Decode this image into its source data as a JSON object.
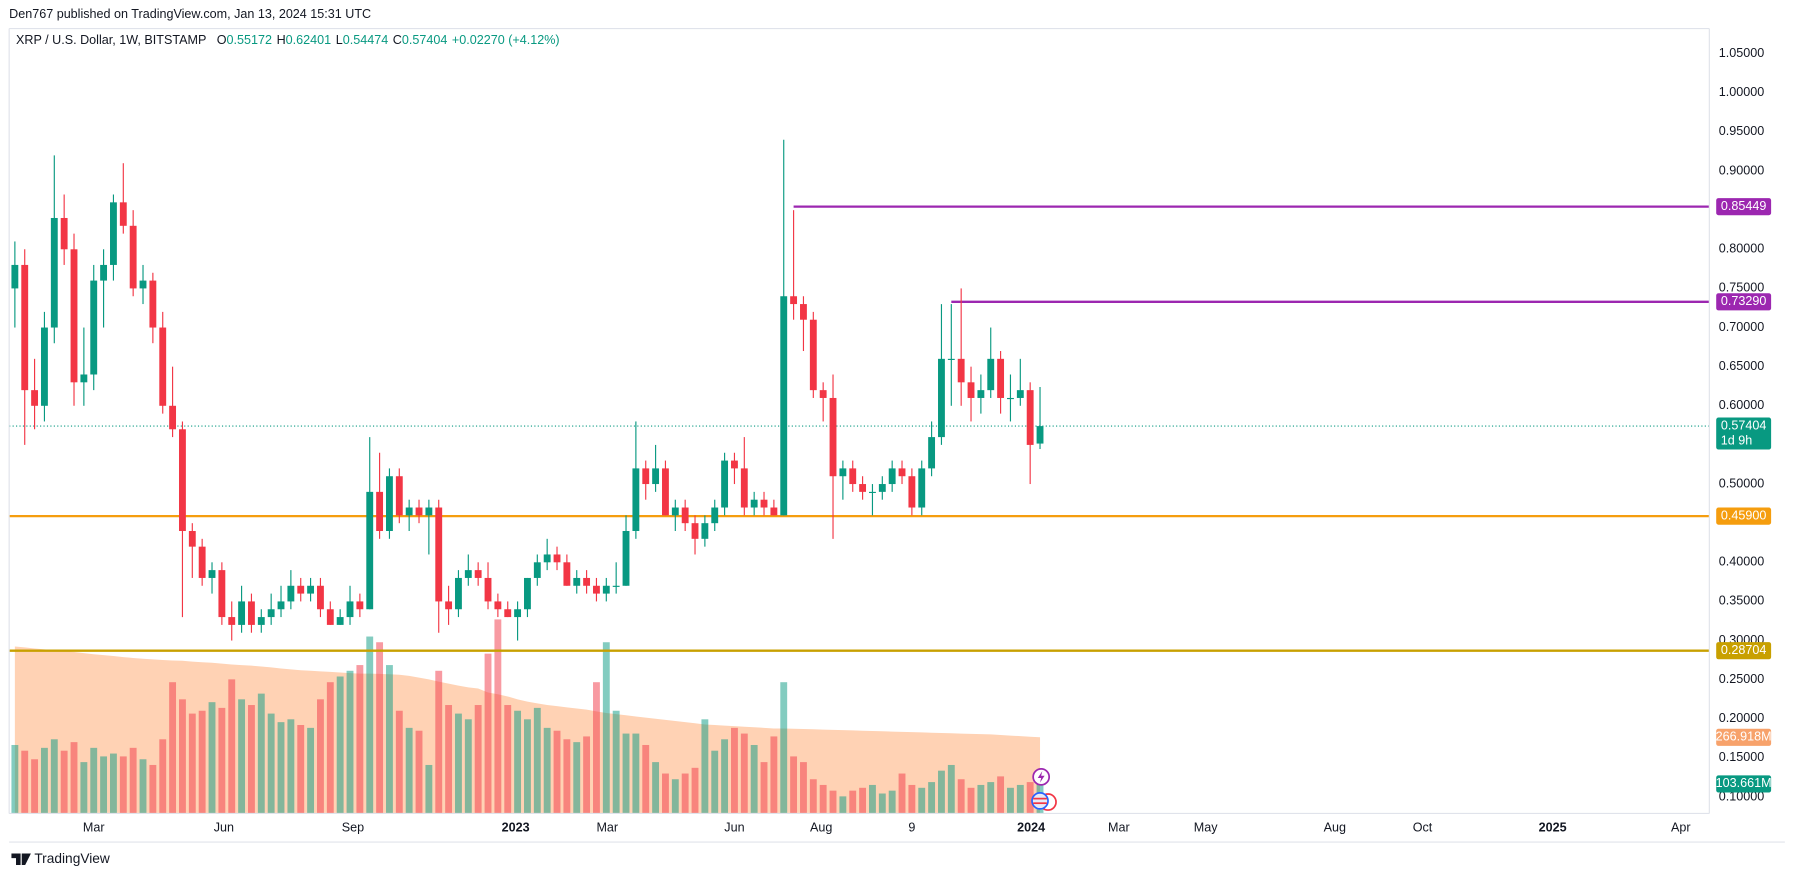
{
  "header": {
    "text": "Den767 published on TradingView.com, Jan 13, 2024 15:31 UTC"
  },
  "footer": {
    "brand": "TradingView"
  },
  "chart_data": {
    "type": "candlestick",
    "symbol": "XRP / U.S. Dollar, 1W, BITSTAMP",
    "ohlc_legend": [
      {
        "label": "O",
        "value": "0.55172"
      },
      {
        "label": "H",
        "value": "0.62401"
      },
      {
        "label": "L",
        "value": "0.54474"
      },
      {
        "label": "C",
        "value": "0.57404"
      }
    ],
    "change": "+0.02270 (+4.12%)",
    "open": [
      0.75,
      0.78,
      0.62,
      0.6,
      0.7,
      0.84,
      0.8,
      0.63,
      0.64,
      0.76,
      0.78,
      0.86,
      0.83,
      0.75,
      0.76,
      0.7,
      0.6,
      0.57,
      0.44,
      0.42,
      0.38,
      0.39,
      0.33,
      0.32,
      0.35,
      0.32,
      0.33,
      0.34,
      0.35,
      0.37,
      0.36,
      0.37,
      0.34,
      0.32,
      0.33,
      0.35,
      0.34,
      0.49,
      0.44,
      0.51,
      0.46,
      0.47,
      0.46,
      0.47,
      0.35,
      0.34,
      0.38,
      0.39,
      0.38,
      0.35,
      0.34,
      0.33,
      0.34,
      0.38,
      0.4,
      0.41,
      0.4,
      0.37,
      0.38,
      0.37,
      0.36,
      0.37,
      0.37,
      0.44,
      0.52,
      0.5,
      0.52,
      0.46,
      0.47,
      0.45,
      0.43,
      0.45,
      0.47,
      0.53,
      0.52,
      0.47,
      0.48,
      0.47,
      0.46,
      0.74,
      0.73,
      0.71,
      0.62,
      0.61,
      0.51,
      0.52,
      0.5,
      0.49,
      0.49,
      0.5,
      0.52,
      0.51,
      0.47,
      0.52,
      0.56,
      0.66,
      0.66,
      0.63,
      0.61,
      0.62,
      0.66,
      0.61,
      0.61,
      0.62,
      0.55172
    ],
    "high": [
      0.81,
      0.8,
      0.66,
      0.72,
      0.92,
      0.87,
      0.82,
      0.7,
      0.78,
      0.8,
      0.87,
      0.91,
      0.85,
      0.78,
      0.77,
      0.72,
      0.65,
      0.58,
      0.45,
      0.43,
      0.4,
      0.4,
      0.35,
      0.37,
      0.36,
      0.34,
      0.36,
      0.37,
      0.39,
      0.38,
      0.38,
      0.38,
      0.35,
      0.34,
      0.37,
      0.36,
      0.56,
      0.54,
      0.52,
      0.52,
      0.48,
      0.48,
      0.48,
      0.48,
      0.37,
      0.39,
      0.41,
      0.4,
      0.4,
      0.36,
      0.35,
      0.35,
      0.38,
      0.41,
      0.43,
      0.42,
      0.41,
      0.39,
      0.39,
      0.38,
      0.38,
      0.4,
      0.46,
      0.58,
      0.53,
      0.55,
      0.53,
      0.48,
      0.48,
      0.46,
      0.46,
      0.48,
      0.54,
      0.54,
      0.56,
      0.49,
      0.49,
      0.48,
      0.94,
      0.85,
      0.74,
      0.72,
      0.63,
      0.64,
      0.53,
      0.53,
      0.51,
      0.5,
      0.51,
      0.53,
      0.53,
      0.52,
      0.53,
      0.58,
      0.73,
      0.73,
      0.75,
      0.65,
      0.64,
      0.7,
      0.67,
      0.64,
      0.66,
      0.63,
      0.62401
    ],
    "low": [
      0.7,
      0.55,
      0.57,
      0.58,
      0.68,
      0.78,
      0.6,
      0.6,
      0.62,
      0.7,
      0.76,
      0.82,
      0.74,
      0.73,
      0.68,
      0.59,
      0.56,
      0.33,
      0.38,
      0.37,
      0.36,
      0.32,
      0.3,
      0.31,
      0.31,
      0.31,
      0.32,
      0.33,
      0.34,
      0.35,
      0.35,
      0.33,
      0.32,
      0.32,
      0.32,
      0.33,
      0.34,
      0.43,
      0.43,
      0.45,
      0.44,
      0.45,
      0.41,
      0.31,
      0.32,
      0.33,
      0.37,
      0.37,
      0.34,
      0.33,
      0.33,
      0.3,
      0.33,
      0.37,
      0.39,
      0.39,
      0.37,
      0.36,
      0.36,
      0.35,
      0.35,
      0.36,
      0.37,
      0.43,
      0.48,
      0.49,
      0.46,
      0.44,
      0.44,
      0.41,
      0.42,
      0.44,
      0.46,
      0.5,
      0.46,
      0.46,
      0.46,
      0.46,
      0.46,
      0.71,
      0.67,
      0.61,
      0.58,
      0.43,
      0.48,
      0.49,
      0.48,
      0.46,
      0.48,
      0.49,
      0.5,
      0.46,
      0.46,
      0.51,
      0.55,
      0.6,
      0.6,
      0.58,
      0.59,
      0.61,
      0.59,
      0.58,
      0.6,
      0.5,
      0.54474
    ],
    "close": [
      0.78,
      0.62,
      0.6,
      0.7,
      0.84,
      0.8,
      0.63,
      0.64,
      0.76,
      0.78,
      0.86,
      0.83,
      0.75,
      0.76,
      0.7,
      0.6,
      0.57,
      0.44,
      0.42,
      0.38,
      0.39,
      0.33,
      0.32,
      0.35,
      0.32,
      0.33,
      0.34,
      0.35,
      0.37,
      0.36,
      0.37,
      0.34,
      0.32,
      0.33,
      0.35,
      0.34,
      0.49,
      0.44,
      0.51,
      0.46,
      0.47,
      0.46,
      0.47,
      0.35,
      0.34,
      0.38,
      0.39,
      0.38,
      0.35,
      0.34,
      0.33,
      0.34,
      0.38,
      0.4,
      0.41,
      0.4,
      0.37,
      0.38,
      0.37,
      0.36,
      0.37,
      0.37,
      0.44,
      0.52,
      0.5,
      0.52,
      0.46,
      0.47,
      0.45,
      0.43,
      0.45,
      0.47,
      0.53,
      0.52,
      0.47,
      0.48,
      0.47,
      0.46,
      0.74,
      0.73,
      0.71,
      0.62,
      0.61,
      0.51,
      0.52,
      0.5,
      0.49,
      0.49,
      0.5,
      0.52,
      0.51,
      0.47,
      0.52,
      0.56,
      0.66,
      0.66,
      0.63,
      0.61,
      0.62,
      0.66,
      0.61,
      0.61,
      0.62,
      0.55,
      0.57404
    ],
    "up_color": "#089981",
    "down_color": "#f23645",
    "volume": [
      240,
      220,
      190,
      230,
      260,
      220,
      250,
      180,
      230,
      200,
      210,
      200,
      230,
      190,
      170,
      260,
      460,
      400,
      350,
      360,
      390,
      370,
      470,
      400,
      380,
      420,
      350,
      320,
      330,
      310,
      300,
      400,
      460,
      480,
      500,
      520,
      620,
      600,
      520,
      360,
      300,
      290,
      170,
      500,
      380,
      350,
      330,
      380,
      560,
      680,
      380,
      360,
      330,
      370,
      300,
      290,
      260,
      250,
      270,
      460,
      600,
      360,
      280,
      280,
      240,
      180,
      140,
      120,
      140,
      160,
      330,
      220,
      260,
      300,
      280,
      240,
      180,
      270,
      460,
      200,
      180,
      120,
      100,
      80,
      60,
      80,
      90,
      100,
      70,
      80,
      140,
      100,
      90,
      110,
      150,
      170,
      120,
      90,
      100,
      110,
      130,
      90,
      100,
      110,
      103.661
    ],
    "volume_ma": [
      585,
      582,
      578,
      575,
      572,
      570,
      566,
      562,
      558,
      555,
      552,
      548,
      545,
      542,
      540,
      538,
      536,
      535,
      532,
      530,
      528,
      525,
      522,
      520,
      518,
      515,
      512,
      508,
      505,
      502,
      500,
      498,
      496,
      494,
      492,
      490,
      490,
      489,
      488,
      486,
      482,
      476,
      470,
      462,
      455,
      448,
      442,
      438,
      424,
      418,
      410,
      400,
      392,
      386,
      380,
      376,
      372,
      368,
      364,
      358,
      352,
      348,
      344,
      340,
      336,
      332,
      328,
      324,
      320,
      316,
      312,
      310,
      308,
      306,
      304,
      302,
      300,
      298,
      298,
      297,
      296,
      295,
      294,
      293,
      292,
      291,
      290,
      289,
      288,
      287,
      286,
      285,
      284,
      283,
      282,
      281,
      280,
      279,
      278,
      277,
      275,
      273,
      271,
      269,
      266.918
    ],
    "volume_ylim": [
      0,
      2750
    ],
    "volume_up_color": "rgba(8,153,129,0.5)",
    "volume_down_color": "rgba(242,54,69,0.5)",
    "volume_ma_color": "#ffd2b4",
    "volume_ma_badge_color": "#f7a26b",
    "last_labels": {
      "volume_ma": "266.918M",
      "volume": "103.661M"
    },
    "countdown": "1d 9h",
    "levels": [
      {
        "value": 0.85449,
        "color": "#9c27b0",
        "start": 79
      },
      {
        "value": 0.7329,
        "label": "0.73290",
        "color": "#9c27b0",
        "start": 95
      },
      {
        "value": 0.459,
        "label": "0.45900",
        "color": "#f59d0e"
      },
      {
        "value": 0.28704,
        "color": "#c8a000"
      }
    ],
    "ylim": [
      0.079,
      1.082
    ],
    "yticks": [
      {
        "value": 1.05,
        "label": "1.05000"
      },
      {
        "value": 1.0,
        "label": "1.00000"
      },
      {
        "value": 0.95,
        "label": "0.95000"
      },
      {
        "value": 0.9,
        "label": "0.90000"
      },
      {
        "value": 0.8,
        "label": "0.80000"
      },
      {
        "value": 0.75,
        "label": "0.75000"
      },
      {
        "value": 0.7,
        "label": "0.70000"
      },
      {
        "value": 0.65,
        "label": "0.65000"
      },
      {
        "value": 0.6,
        "label": "0.60000"
      },
      {
        "value": 0.5,
        "label": "0.50000"
      },
      {
        "value": 0.4,
        "label": "0.40000"
      },
      {
        "value": 0.35,
        "label": "0.35000"
      },
      {
        "value": 0.3,
        "label": "0.30000"
      },
      {
        "value": 0.25,
        "label": "0.25000"
      },
      {
        "value": 0.2,
        "label": "0.20000"
      },
      {
        "value": 0.15,
        "label": "0.15000"
      },
      {
        "value": 0.1,
        "label": "0.10000"
      }
    ],
    "xlim": [
      -0.58,
      171.9
    ],
    "xticks": [
      {
        "value": 8.0,
        "label": "Mar"
      },
      {
        "value": 21.2,
        "label": "Jun"
      },
      {
        "value": 34.3,
        "label": "Sep"
      },
      {
        "value": 50.8,
        "label": "2023"
      },
      {
        "value": 60.1,
        "label": "Mar"
      },
      {
        "value": 73.0,
        "label": "Jun"
      },
      {
        "value": 81.8,
        "label": "Aug"
      },
      {
        "value": 91.0,
        "label": "9"
      },
      {
        "value": 103.1,
        "label": "2024"
      },
      {
        "value": 112.0,
        "label": "Mar"
      },
      {
        "value": 120.8,
        "label": "May"
      },
      {
        "value": 133.9,
        "label": "Aug"
      },
      {
        "value": 142.8,
        "label": "Oct"
      },
      {
        "value": 156.0,
        "label": "2025"
      },
      {
        "value": 169.0,
        "label": "Apr"
      }
    ],
    "grid": true
  }
}
